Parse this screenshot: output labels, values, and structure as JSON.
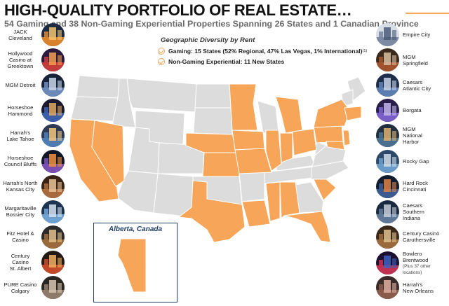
{
  "header": {
    "title": "HIGH-QUALITY PORTFOLIO OF REAL ESTATE…",
    "subtitle": "54 Gaming and 38 Non-Gaming Experiential Properties Spanning 26 States and 1 Canadian Province"
  },
  "legend": {
    "title": "Geographic Diversity by Rent",
    "gaming": "Gaming: 15 States (52% Regional, 47% Las Vegas, 1% International)",
    "gaming_note": "(1)",
    "non_gaming": "Non-Gaming Experiential: 11 New States"
  },
  "inset": {
    "title": "Alberta, Canada"
  },
  "colors": {
    "highlight": "#f7a558",
    "base": "#dcdcdc",
    "frame": "#1f3e66"
  },
  "left_properties": [
    {
      "lines": [
        "JACK",
        "Cleveland"
      ]
    },
    {
      "lines": [
        "Hollywood",
        "Casino at",
        "Greektown"
      ]
    },
    {
      "lines": [
        "MGM Detroit"
      ]
    },
    {
      "lines": [
        "Horseshoe",
        "Hammond"
      ]
    },
    {
      "lines": [
        "Harrah's",
        "Lake Tahoe"
      ]
    },
    {
      "lines": [
        "Horseshoe",
        "Council Bluffs"
      ]
    },
    {
      "lines": [
        "Harrah's North",
        "Kansas City"
      ]
    },
    {
      "lines": [
        "Margaritaville",
        "Bossier City"
      ]
    },
    {
      "lines": [
        "Fitz Hotel &",
        "Casino"
      ]
    },
    {
      "lines": [
        "Century Casino",
        "St. Albert"
      ]
    },
    {
      "lines": [
        "PURE Casino",
        "Calgary"
      ]
    }
  ],
  "right_properties": [
    {
      "lines": [
        "Empire City"
      ]
    },
    {
      "lines": [
        "MGM",
        "Springfield"
      ]
    },
    {
      "lines": [
        "Caesars",
        "Atlantic City"
      ]
    },
    {
      "lines": [
        "Borgata"
      ]
    },
    {
      "lines": [
        "MGM",
        "National",
        "Harbor"
      ]
    },
    {
      "lines": [
        "Rocky Gap"
      ]
    },
    {
      "lines": [
        "Hard Rock",
        "Cincinnati"
      ]
    },
    {
      "lines": [
        "Caesars",
        "Southern",
        "Indiana"
      ]
    },
    {
      "lines": [
        "Century Casino",
        "Caruthersville"
      ]
    },
    {
      "lines": [
        "Bowlero",
        "Brentwood"
      ],
      "note": "(Plus 37 other locations)"
    },
    {
      "lines": [
        "Harrah's",
        "New Orleans"
      ]
    }
  ]
}
